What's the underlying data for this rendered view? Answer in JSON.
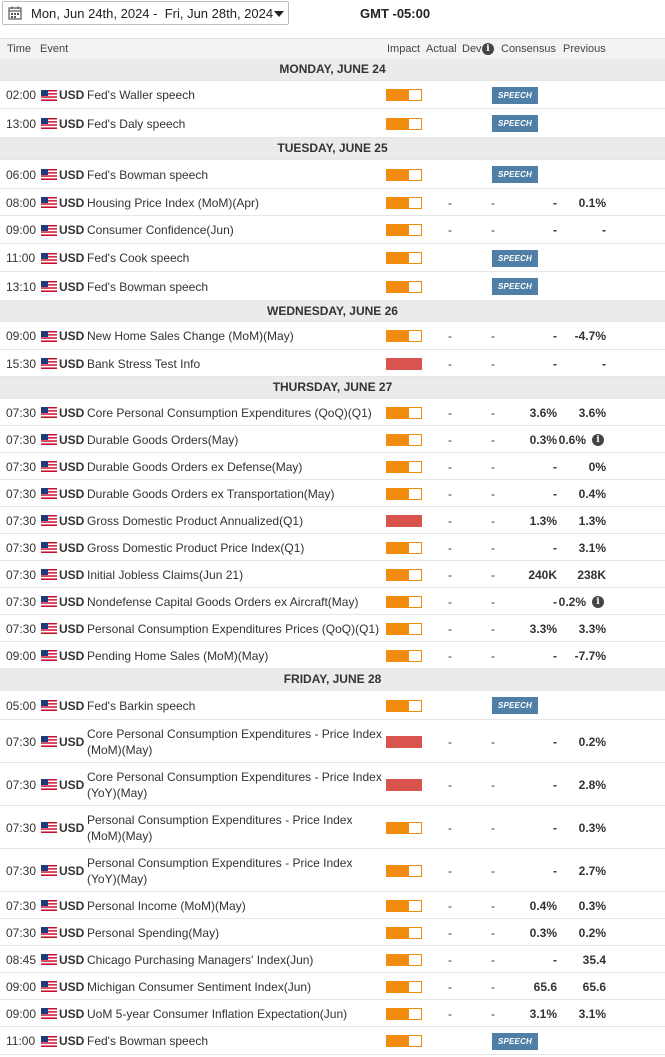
{
  "header": {
    "date_range": "Mon, Jun 24th, 2024 -  Fri, Jun 28th, 2024",
    "timezone": "GMT -05:00"
  },
  "columns": {
    "time": "Time",
    "event": "Event",
    "impact": "Impact",
    "actual": "Actual",
    "dev": "Dev",
    "consensus": "Consensus",
    "previous": "Previous"
  },
  "colors": {
    "medium_impact": "#f28c0f",
    "high_impact": "#d9534f",
    "speech_badge": "#4f7fa6",
    "day_header_bg": "#ebebeb"
  },
  "rows": [
    {
      "type": "day",
      "label": "MONDAY, JUNE 24"
    },
    {
      "type": "event",
      "time": "02:00",
      "currency": "USD",
      "name": "Fed's Waller speech",
      "impact": "medium",
      "speech": true,
      "speech_label": "SPEECH"
    },
    {
      "type": "event",
      "time": "13:00",
      "currency": "USD",
      "name": "Fed's Daly speech",
      "impact": "medium",
      "speech": true,
      "speech_label": "SPEECH"
    },
    {
      "type": "day",
      "label": "TUESDAY, JUNE 25"
    },
    {
      "type": "event",
      "time": "06:00",
      "currency": "USD",
      "name": "Fed's Bowman speech",
      "impact": "medium",
      "speech": true,
      "speech_label": "SPEECH"
    },
    {
      "type": "event",
      "time": "08:00",
      "currency": "USD",
      "name": "Housing Price Index (MoM)(Apr)",
      "impact": "medium",
      "actual": "-",
      "dev": "-",
      "consensus": "-",
      "previous": "0.1%"
    },
    {
      "type": "event",
      "time": "09:00",
      "currency": "USD",
      "name": "Consumer Confidence(Jun)",
      "impact": "medium",
      "actual": "-",
      "dev": "-",
      "consensus": "-",
      "previous": "-"
    },
    {
      "type": "event",
      "time": "11:00",
      "currency": "USD",
      "name": "Fed's Cook speech",
      "impact": "medium",
      "speech": true,
      "speech_label": "SPEECH"
    },
    {
      "type": "event",
      "time": "13:10",
      "currency": "USD",
      "name": "Fed's Bowman speech",
      "impact": "medium",
      "speech": true,
      "speech_label": "SPEECH"
    },
    {
      "type": "day",
      "label": "WEDNESDAY, JUNE 26"
    },
    {
      "type": "event",
      "time": "09:00",
      "currency": "USD",
      "name": "New Home Sales Change (MoM)(May)",
      "impact": "medium",
      "actual": "-",
      "dev": "-",
      "consensus": "-",
      "previous": "-4.7%"
    },
    {
      "type": "event",
      "time": "15:30",
      "currency": "USD",
      "name": "Bank Stress Test Info",
      "impact": "high",
      "actual": "-",
      "dev": "-",
      "consensus": "-",
      "previous": "-"
    },
    {
      "type": "day",
      "label": "THURSDAY, JUNE 27"
    },
    {
      "type": "event",
      "time": "07:30",
      "currency": "USD",
      "name": "Core Personal Consumption Expenditures (QoQ)(Q1)",
      "impact": "medium",
      "actual": "-",
      "dev": "-",
      "consensus": "3.6%",
      "previous": "3.6%"
    },
    {
      "type": "event",
      "time": "07:30",
      "currency": "USD",
      "name": "Durable Goods Orders(May)",
      "impact": "medium",
      "actual": "-",
      "dev": "-",
      "consensus": "0.3%",
      "previous": "0.6%",
      "previous_info": true
    },
    {
      "type": "event",
      "time": "07:30",
      "currency": "USD",
      "name": "Durable Goods Orders ex Defense(May)",
      "impact": "medium",
      "actual": "-",
      "dev": "-",
      "consensus": "-",
      "previous": "0%"
    },
    {
      "type": "event",
      "time": "07:30",
      "currency": "USD",
      "name": "Durable Goods Orders ex Transportation(May)",
      "impact": "medium",
      "actual": "-",
      "dev": "-",
      "consensus": "-",
      "previous": "0.4%"
    },
    {
      "type": "event",
      "time": "07:30",
      "currency": "USD",
      "name": "Gross Domestic Product Annualized(Q1)",
      "impact": "high",
      "actual": "-",
      "dev": "-",
      "consensus": "1.3%",
      "previous": "1.3%"
    },
    {
      "type": "event",
      "time": "07:30",
      "currency": "USD",
      "name": "Gross Domestic Product Price Index(Q1)",
      "impact": "medium",
      "actual": "-",
      "dev": "-",
      "consensus": "-",
      "previous": "3.1%"
    },
    {
      "type": "event",
      "time": "07:30",
      "currency": "USD",
      "name": "Initial Jobless Claims(Jun 21)",
      "impact": "medium",
      "actual": "-",
      "dev": "-",
      "consensus": "240K",
      "previous": "238K"
    },
    {
      "type": "event",
      "time": "07:30",
      "currency": "USD",
      "name": "Nondefense Capital Goods Orders ex Aircraft(May)",
      "impact": "medium",
      "actual": "-",
      "dev": "-",
      "consensus": "-",
      "previous": "0.2%",
      "previous_info": true
    },
    {
      "type": "event",
      "time": "07:30",
      "currency": "USD",
      "name": "Personal Consumption Expenditures Prices (QoQ)(Q1)",
      "impact": "medium",
      "actual": "-",
      "dev": "-",
      "consensus": "3.3%",
      "previous": "3.3%"
    },
    {
      "type": "event",
      "time": "09:00",
      "currency": "USD",
      "name": "Pending Home Sales (MoM)(May)",
      "impact": "medium",
      "actual": "-",
      "dev": "-",
      "consensus": "-",
      "previous": "-7.7%"
    },
    {
      "type": "day",
      "label": "FRIDAY, JUNE 28"
    },
    {
      "type": "event",
      "time": "05:00",
      "currency": "USD",
      "name": "Fed's Barkin speech",
      "impact": "medium",
      "speech": true,
      "speech_label": "SPEECH"
    },
    {
      "type": "event",
      "time": "07:30",
      "currency": "USD",
      "name": "Core Personal Consumption Expenditures - Price Index (MoM)(May)",
      "impact": "high",
      "actual": "-",
      "dev": "-",
      "consensus": "-",
      "previous": "0.2%"
    },
    {
      "type": "event",
      "time": "07:30",
      "currency": "USD",
      "name": "Core Personal Consumption Expenditures - Price Index (YoY)(May)",
      "impact": "high",
      "actual": "-",
      "dev": "-",
      "consensus": "-",
      "previous": "2.8%"
    },
    {
      "type": "event",
      "time": "07:30",
      "currency": "USD",
      "name": "Personal Consumption Expenditures - Price Index (MoM)(May)",
      "impact": "medium",
      "actual": "-",
      "dev": "-",
      "consensus": "-",
      "previous": "0.3%"
    },
    {
      "type": "event",
      "time": "07:30",
      "currency": "USD",
      "name": "Personal Consumption Expenditures - Price Index (YoY)(May)",
      "impact": "medium",
      "actual": "-",
      "dev": "-",
      "consensus": "-",
      "previous": "2.7%"
    },
    {
      "type": "event",
      "time": "07:30",
      "currency": "USD",
      "name": "Personal Income (MoM)(May)",
      "impact": "medium",
      "actual": "-",
      "dev": "-",
      "consensus": "0.4%",
      "previous": "0.3%"
    },
    {
      "type": "event",
      "time": "07:30",
      "currency": "USD",
      "name": "Personal Spending(May)",
      "impact": "medium",
      "actual": "-",
      "dev": "-",
      "consensus": "0.3%",
      "previous": "0.2%"
    },
    {
      "type": "event",
      "time": "08:45",
      "currency": "USD",
      "name": "Chicago Purchasing Managers' Index(Jun)",
      "impact": "medium",
      "actual": "-",
      "dev": "-",
      "consensus": "-",
      "previous": "35.4"
    },
    {
      "type": "event",
      "time": "09:00",
      "currency": "USD",
      "name": "Michigan Consumer Sentiment Index(Jun)",
      "impact": "medium",
      "actual": "-",
      "dev": "-",
      "consensus": "65.6",
      "previous": "65.6"
    },
    {
      "type": "event",
      "time": "09:00",
      "currency": "USD",
      "name": "UoM 5-year Consumer Inflation Expectation(Jun)",
      "impact": "medium",
      "actual": "-",
      "dev": "-",
      "consensus": "3.1%",
      "previous": "3.1%"
    },
    {
      "type": "event",
      "time": "11:00",
      "currency": "USD",
      "name": "Fed's Bowman speech",
      "impact": "medium",
      "speech": true,
      "speech_label": "SPEECH"
    }
  ]
}
